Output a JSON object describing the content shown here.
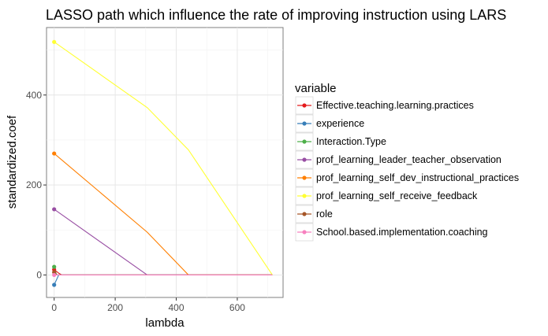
{
  "chart_data": {
    "type": "line",
    "title": "LASSO path which influence the rate of improving instruction using LARS",
    "xlabel": "lambda",
    "ylabel": "standardized.coef",
    "xlim": [
      -25,
      750
    ],
    "ylim": [
      -50,
      550
    ],
    "x_ticks": [
      0,
      200,
      400,
      600
    ],
    "y_ticks": [
      0,
      200,
      400
    ],
    "grid": true,
    "legend_title": "variable",
    "legend_position": "right",
    "series": [
      {
        "name": "Effective.teaching.learning.practices",
        "color": "#e41a1c",
        "points": [
          [
            0,
            12
          ],
          [
            15,
            4
          ],
          [
            25,
            0
          ],
          [
            715,
            0
          ]
        ]
      },
      {
        "name": "experience",
        "color": "#377eb8",
        "points": [
          [
            0,
            -22
          ],
          [
            15,
            0
          ],
          [
            715,
            0
          ]
        ]
      },
      {
        "name": "Interaction.Type",
        "color": "#4daf4a",
        "points": [
          [
            0,
            18
          ],
          [
            8,
            0
          ],
          [
            715,
            0
          ]
        ]
      },
      {
        "name": "prof_learning_leader_teacher_observation",
        "color": "#984ea3",
        "points": [
          [
            0,
            146
          ],
          [
            305,
            0
          ],
          [
            715,
            0
          ]
        ]
      },
      {
        "name": "prof_learning_self_dev_instructional_practices",
        "color": "#ff7f00",
        "points": [
          [
            0,
            270
          ],
          [
            305,
            95
          ],
          [
            440,
            0
          ],
          [
            715,
            0
          ]
        ]
      },
      {
        "name": "prof_learning_self_receive_feedback",
        "color": "#ffff33",
        "points": [
          [
            0,
            518
          ],
          [
            305,
            372
          ],
          [
            440,
            278
          ],
          [
            715,
            0
          ]
        ]
      },
      {
        "name": "role",
        "color": "#a65628",
        "points": [
          [
            0,
            6
          ],
          [
            10,
            0
          ],
          [
            715,
            0
          ]
        ]
      },
      {
        "name": "School.based.implementation.coaching",
        "color": "#f781bf",
        "points": [
          [
            0,
            0
          ],
          [
            715,
            0
          ]
        ]
      }
    ]
  }
}
